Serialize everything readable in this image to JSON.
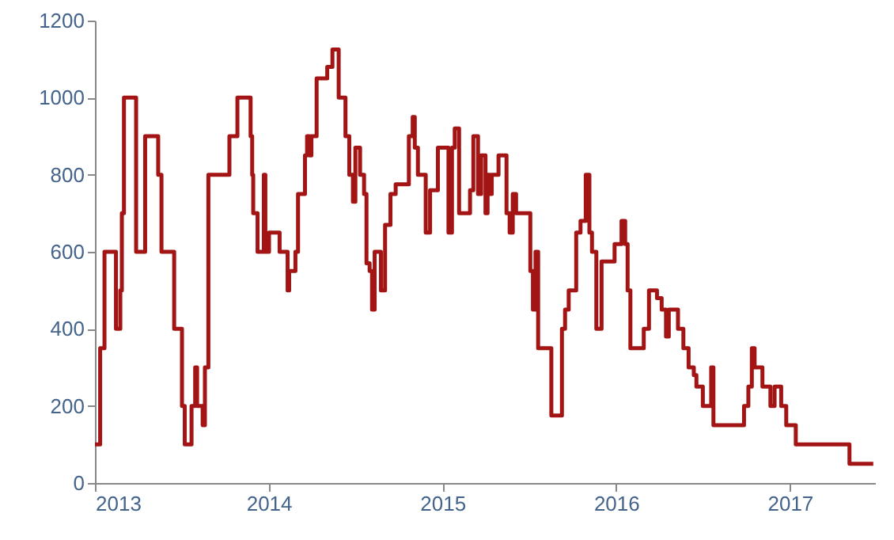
{
  "chart_data": {
    "type": "step",
    "color": "#a31515",
    "grid": false,
    "marker": "none",
    "line_style": "solid",
    "x": [
      2013.0,
      2013.03,
      2013.055,
      2013.121,
      2013.146,
      2013.155,
      2013.167,
      2013.237,
      2013.289,
      2013.364,
      2013.383,
      2013.456,
      2013.501,
      2013.517,
      2013.556,
      2013.577,
      2013.588,
      2013.62,
      2013.633,
      2013.653,
      2013.774,
      2013.82,
      2013.896,
      2013.905,
      2013.911,
      2013.936,
      2013.972,
      2013.981,
      2014.002,
      2014.063,
      2014.109,
      2014.118,
      2014.154,
      2014.169,
      2014.209,
      2014.221,
      2014.235,
      2014.246,
      2014.276,
      2014.337,
      2014.367,
      2014.403,
      2014.442,
      2014.464,
      2014.485,
      2014.499,
      2014.526,
      2014.549,
      2014.563,
      2014.581,
      2014.595,
      2014.61,
      2014.646,
      2014.67,
      2014.701,
      2014.731,
      2014.807,
      2014.829,
      2014.841,
      2014.859,
      2014.904,
      2014.929,
      2014.974,
      2015.035,
      2015.055,
      2015.071,
      2015.096,
      2015.159,
      2015.178,
      2015.205,
      2015.223,
      2015.248,
      2015.26,
      2015.272,
      2015.284,
      2015.323,
      2015.369,
      2015.387,
      2015.405,
      2015.424,
      2015.506,
      2015.521,
      2015.536,
      2015.551,
      2015.627,
      2015.688,
      2015.706,
      2015.727,
      2015.77,
      2015.795,
      2015.825,
      2015.846,
      2015.861,
      2015.886,
      2015.916,
      2015.991,
      2016.031,
      2016.052,
      2016.066,
      2016.082,
      2016.159,
      2016.189,
      2016.235,
      2016.262,
      2016.287,
      2016.303,
      2016.356,
      2016.387,
      2016.417,
      2016.447,
      2016.462,
      2016.499,
      2016.547,
      2016.56,
      2016.736,
      2016.761,
      2016.781,
      2016.797,
      2016.842,
      2016.888,
      2016.912,
      2016.95,
      2016.979,
      2017.034,
      2017.343,
      2017.48
    ],
    "values": [
      100,
      350,
      600,
      400,
      500,
      700,
      1000,
      600,
      900,
      800,
      600,
      400,
      200,
      100,
      200,
      300,
      200,
      150,
      300,
      800,
      900,
      1000,
      900,
      800,
      700,
      600,
      800,
      600,
      650,
      600,
      500,
      550,
      600,
      750,
      850,
      900,
      850,
      900,
      1050,
      1080,
      1125,
      1000,
      900,
      800,
      730,
      870,
      800,
      750,
      570,
      550,
      450,
      600,
      500,
      670,
      750,
      775,
      900,
      950,
      870,
      800,
      650,
      760,
      870,
      650,
      870,
      920,
      700,
      760,
      900,
      750,
      850,
      700,
      800,
      750,
      800,
      850,
      700,
      650,
      750,
      700,
      550,
      450,
      600,
      350,
      175,
      400,
      450,
      500,
      650,
      680,
      800,
      650,
      600,
      400,
      575,
      620,
      680,
      620,
      500,
      350,
      400,
      500,
      480,
      450,
      380,
      450,
      400,
      350,
      300,
      280,
      250,
      200,
      300,
      150,
      200,
      250,
      350,
      300,
      250,
      200,
      250,
      200,
      150,
      100,
      50,
      50
    ],
    "xlim": [
      2013,
      2017.49
    ],
    "xticks": [
      2013,
      2014,
      2015,
      2016,
      2017
    ],
    "ylim": [
      0,
      1200
    ],
    "yticks": [
      0,
      200,
      400,
      600,
      800,
      1000,
      1200
    ]
  }
}
